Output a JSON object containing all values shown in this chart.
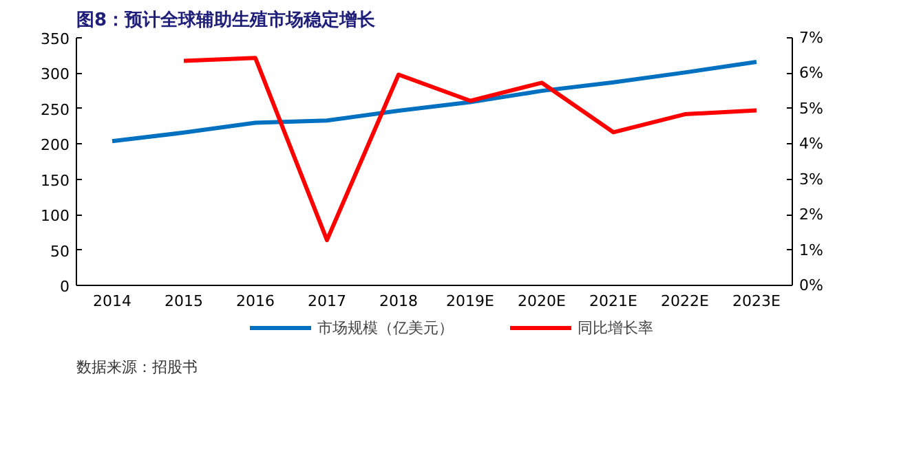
{
  "chart_data": {
    "type": "line",
    "title": "图8：预计全球辅助生殖市场稳定增长",
    "categories": [
      "2014",
      "2015",
      "2016",
      "2017",
      "2018",
      "2019E",
      "2020E",
      "2021E",
      "2022E",
      "2023E"
    ],
    "series": [
      {
        "name": "市场规模（亿美元）",
        "color": "#0070c0",
        "values": [
          204,
          216,
          230,
          233,
          247,
          259,
          275,
          287,
          301,
          316
        ]
      },
      {
        "name": "同比增长率",
        "color": "#ff0000",
        "axis": "y2",
        "values": [
          null,
          6.35,
          6.43,
          1.28,
          5.96,
          5.22,
          5.73,
          4.33,
          4.84,
          4.95
        ]
      }
    ],
    "ylim": [
      0,
      350
    ],
    "yticks": [
      0,
      50,
      100,
      150,
      200,
      250,
      300,
      350
    ],
    "y2lim": [
      0,
      7
    ],
    "y2ticks": [
      {
        "value": 0,
        "label": "0%"
      },
      {
        "value": 1,
        "label": "1%"
      },
      {
        "value": 2,
        "label": "2%"
      },
      {
        "value": 3,
        "label": "3%"
      },
      {
        "value": 4,
        "label": "4%"
      },
      {
        "value": 5,
        "label": "5%"
      },
      {
        "value": 6,
        "label": "6%"
      },
      {
        "value": 7,
        "label": "7%"
      }
    ],
    "grid": false,
    "legend": "bottom",
    "marker": "none",
    "line_style": "solid",
    "annotations": [
      "数据来源：招股书"
    ]
  }
}
